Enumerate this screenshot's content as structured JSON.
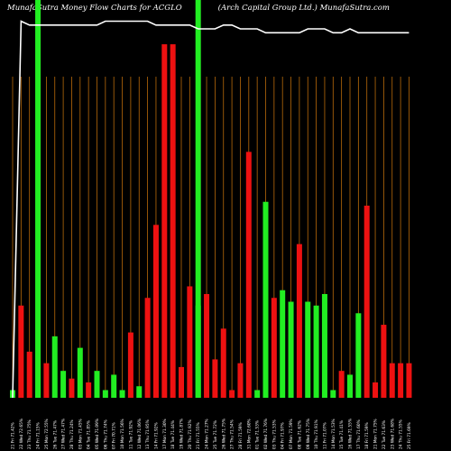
{
  "header": {
    "title": "MunafaSutra  Money Flow  Charts for ACGLO",
    "subtitle": "(Arch Capital Group Ltd.) MunafaSutra.com"
  },
  "colors": {
    "background": "#000000",
    "grid": "#b86a0a",
    "up": "#22ee22",
    "down": "#ee1111",
    "line": "#ffffff",
    "highlight": "#22ee22"
  },
  "chart_data": {
    "type": "bar",
    "title": "MunafaSutra  Money Flow  Charts for ACGLO",
    "subtitle": "(Arch Capital Group Ltd.) MunafaSutra.com",
    "grid": true,
    "categories": [
      "21 Fri Feb 2025",
      "22 Wed Feb 2025",
      "23 Thu Feb 2025",
      "24 Fri Feb 2025",
      "25 Mon Feb 2025",
      "26 Tue Feb 2025",
      "27 Wed Feb 2025",
      "28 Thu Feb 2025",
      "03 Mon Mar 2025",
      "04 Tue Mar 2025",
      "05 Wed Mar 2025",
      "06 Thu Mar 2025",
      "07 Fri Mar 2025",
      "10 Mon Mar 2025",
      "11 Tue Mar 2025",
      "12 Wed Mar 2025",
      "13 Thu Mar 2025",
      "14 Fri Mar 2025",
      "17 Mon Mar 2025",
      "18 Tue Mar 2025",
      "19 Wed Mar 2025",
      "20 Thu Mar 2025",
      "21 Fri Mar 2025",
      "24 Mon Mar 2025",
      "25 Tue Mar 2025",
      "26 Wed Mar 2025",
      "27 Thu Mar 2025",
      "28 Fri Mar 2025",
      "31 Mon Mar 2025",
      "01 Tue Apr 2025",
      "02 Wed Apr 2025",
      "03 Thu Apr 2025",
      "04 Fri Apr 2025",
      "07 Mon Apr 2025",
      "08 Tue Apr 2025",
      "09 Wed Apr 2025",
      "10 Thu Apr 2025",
      "11 Fri Apr 2025",
      "14 Mon Apr 2025",
      "15 Tue Apr 2025",
      "16 Wed Apr 2025",
      "17 Thu Apr 2025",
      "18 Fri Apr 2025",
      "21 Mon Apr 2025",
      "22 Tue Apr 2025",
      "23 Wed Apr 2025",
      "24 Thu Apr 2025",
      "25 Fri Apr 2025"
    ],
    "x_tick_labels": [
      "21 Fri 71.42%",
      "22 Wed 72.65%",
      "23 Thu 71.75%",
      "24 Fri 71.15%",
      "25 Mon 72.55%",
      "26 Tue 71.47%",
      "27 Wed 71.47%",
      "28 Thu 71.24%",
      "03 Mon 71.45%",
      "04 Tue 71.85%",
      "05 Wed 71.09%",
      "06 Thu 71.74%",
      "07 Fri 70.71%",
      "10 Mon 71.56%",
      "11 Tue 71.92%",
      "12 Wed 71.06%",
      "13 Thu 71.95%",
      "14 Fri 71.92%",
      "17 Mon 71.30%",
      "18 Tue 71.44%",
      "19 Wed 71.87%",
      "20 Thu 71.92%",
      "21 Fri 71.55%",
      "24 Mon 71.27%",
      "25 Tue 71.72%",
      "26 Wed 71.75%",
      "27 Thu 71.54%",
      "28 Fri 71.59%",
      "31 Mon 72.60%",
      "01 Tue 71.53%",
      "02 Wed 71.76%",
      "03 Thu 71.53%",
      "04 Fri 71.97%",
      "07 Mon 71.59%",
      "08 Tue 71.62%",
      "09 Wed 71.75%",
      "10 Thu 71.91%",
      "11 Fri 71.07%",
      "14 Mon 71.53%",
      "15 Tue 71.41%",
      "16 Wed 71.55%",
      "17 Thu 71.60%",
      "18 Fri 71.59%",
      "21 Mon 71.75%",
      "22 Tue 71.63%",
      "23 Wed 71.68%",
      "24 Thu 71.55%",
      "25 Fri 71.69%"
    ],
    "series": [
      {
        "type": "bar",
        "values": [
          2,
          24,
          12,
          2,
          9,
          16,
          7,
          5,
          13,
          4,
          7,
          2,
          6,
          2,
          17,
          3,
          26,
          45,
          92,
          92,
          8,
          29,
          24,
          27,
          10,
          18,
          2,
          9,
          64,
          2,
          51,
          26,
          28,
          25,
          40,
          25,
          24,
          27,
          2,
          7,
          6,
          22,
          50,
          4,
          19,
          9,
          9,
          9
        ],
        "directions": [
          "up",
          "down",
          "down",
          "up",
          "down",
          "up",
          "up",
          "down",
          "up",
          "down",
          "up",
          "up",
          "up",
          "up",
          "down",
          "up",
          "down",
          "down",
          "down",
          "down",
          "down",
          "down",
          "up",
          "down",
          "down",
          "down",
          "down",
          "down",
          "down",
          "up",
          "up",
          "down",
          "up",
          "up",
          "down",
          "up",
          "up",
          "up",
          "up",
          "down",
          "up",
          "up",
          "down",
          "down",
          "down",
          "down",
          "down",
          "down"
        ]
      },
      {
        "type": "line",
        "values": [
          0,
          98,
          97,
          97,
          97,
          97,
          97,
          97,
          97,
          97,
          97,
          98,
          98,
          98,
          98,
          98,
          98,
          97,
          97,
          97,
          97,
          97,
          96,
          96,
          96,
          97,
          97,
          96,
          96,
          96,
          95,
          95,
          95,
          95,
          95,
          96,
          96,
          96,
          95,
          95,
          96,
          95,
          95,
          95,
          95,
          95,
          95,
          95
        ]
      }
    ],
    "highlighted_categories": [
      3,
      22
    ],
    "ylim": [
      0,
      100
    ]
  }
}
